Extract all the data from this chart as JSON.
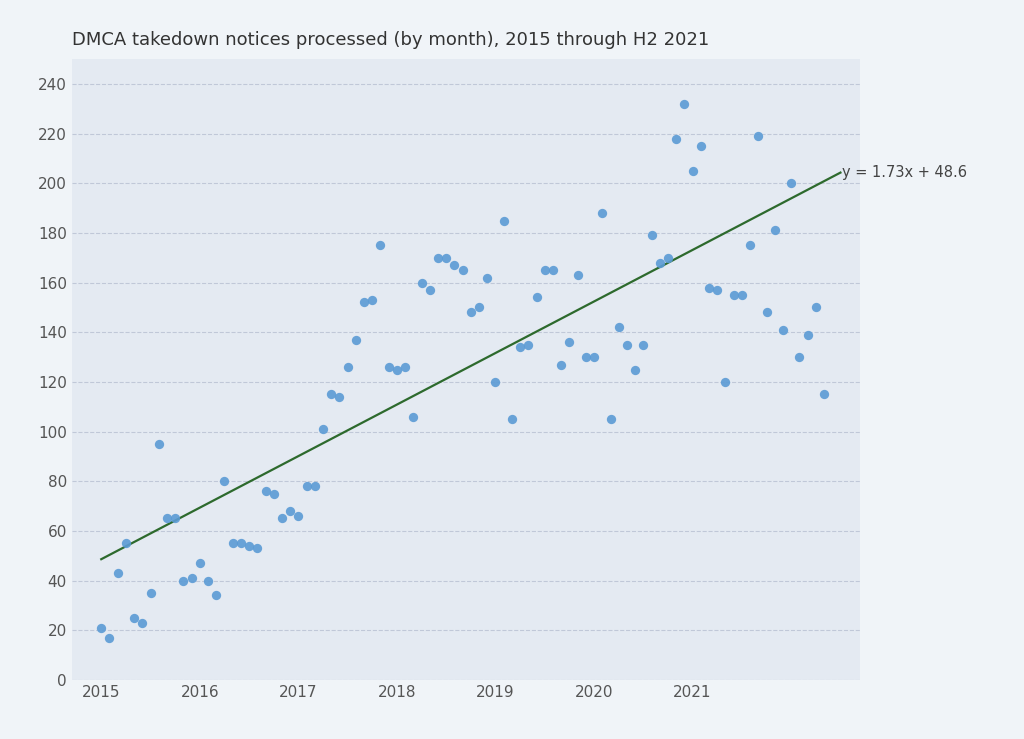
{
  "title": "DMCA takedown notices processed (by month), 2015 through H2 2021",
  "background_color": "#f0f4f8",
  "plot_bg_color": "#e4eaf2",
  "scatter_color": "#5b9bd5",
  "line_color": "#2d6a2d",
  "regression_label": "y = 1.73x + 48.6",
  "ylim": [
    0,
    250
  ],
  "yticks": [
    0,
    20,
    40,
    60,
    80,
    100,
    120,
    140,
    160,
    180,
    200,
    220,
    240
  ],
  "title_fontsize": 13,
  "data_points": [
    [
      2015.0,
      21
    ],
    [
      2015.083,
      17
    ],
    [
      2015.167,
      43
    ],
    [
      2015.25,
      55
    ],
    [
      2015.333,
      25
    ],
    [
      2015.417,
      23
    ],
    [
      2015.5,
      35
    ],
    [
      2015.583,
      95
    ],
    [
      2015.667,
      65
    ],
    [
      2015.75,
      65
    ],
    [
      2015.833,
      40
    ],
    [
      2015.917,
      41
    ],
    [
      2016.0,
      47
    ],
    [
      2016.083,
      40
    ],
    [
      2016.167,
      34
    ],
    [
      2016.25,
      80
    ],
    [
      2016.333,
      55
    ],
    [
      2016.417,
      55
    ],
    [
      2016.5,
      54
    ],
    [
      2016.583,
      53
    ],
    [
      2016.667,
      76
    ],
    [
      2016.75,
      75
    ],
    [
      2016.833,
      65
    ],
    [
      2016.917,
      68
    ],
    [
      2017.0,
      66
    ],
    [
      2017.083,
      78
    ],
    [
      2017.167,
      78
    ],
    [
      2017.25,
      101
    ],
    [
      2017.333,
      115
    ],
    [
      2017.417,
      114
    ],
    [
      2017.5,
      126
    ],
    [
      2017.583,
      137
    ],
    [
      2017.667,
      152
    ],
    [
      2017.75,
      153
    ],
    [
      2017.833,
      175
    ],
    [
      2017.917,
      126
    ],
    [
      2018.0,
      125
    ],
    [
      2018.083,
      126
    ],
    [
      2018.167,
      106
    ],
    [
      2018.25,
      160
    ],
    [
      2018.333,
      157
    ],
    [
      2018.417,
      170
    ],
    [
      2018.5,
      170
    ],
    [
      2018.583,
      167
    ],
    [
      2018.667,
      165
    ],
    [
      2018.75,
      148
    ],
    [
      2018.833,
      150
    ],
    [
      2018.917,
      162
    ],
    [
      2019.0,
      120
    ],
    [
      2019.083,
      185
    ],
    [
      2019.167,
      105
    ],
    [
      2019.25,
      134
    ],
    [
      2019.333,
      135
    ],
    [
      2019.417,
      154
    ],
    [
      2019.5,
      165
    ],
    [
      2019.583,
      165
    ],
    [
      2019.667,
      127
    ],
    [
      2019.75,
      136
    ],
    [
      2019.833,
      163
    ],
    [
      2019.917,
      130
    ],
    [
      2020.0,
      130
    ],
    [
      2020.083,
      188
    ],
    [
      2020.167,
      105
    ],
    [
      2020.25,
      142
    ],
    [
      2020.333,
      135
    ],
    [
      2020.417,
      125
    ],
    [
      2020.5,
      135
    ],
    [
      2020.583,
      179
    ],
    [
      2020.667,
      168
    ],
    [
      2020.75,
      170
    ],
    [
      2020.833,
      218
    ],
    [
      2020.917,
      232
    ],
    [
      2021.0,
      205
    ],
    [
      2021.083,
      215
    ],
    [
      2021.167,
      158
    ],
    [
      2021.25,
      157
    ],
    [
      2021.333,
      120
    ],
    [
      2021.417,
      155
    ],
    [
      2021.5,
      155
    ],
    [
      2021.583,
      175
    ],
    [
      2021.667,
      219
    ],
    [
      2021.75,
      148
    ],
    [
      2021.833,
      181
    ],
    [
      2021.917,
      141
    ],
    [
      2022.0,
      200
    ],
    [
      2022.083,
      130
    ],
    [
      2022.167,
      139
    ],
    [
      2022.25,
      150
    ],
    [
      2022.333,
      115
    ]
  ],
  "reg_slope": 1.73,
  "reg_intercept": 48.6,
  "reg_x_start": 2015.0,
  "reg_x_end": 2022.5,
  "xlim_left": 2014.7,
  "xlim_right": 2022.7,
  "xtick_locs": [
    2015,
    2016,
    2017,
    2018,
    2019,
    2020,
    2021
  ]
}
